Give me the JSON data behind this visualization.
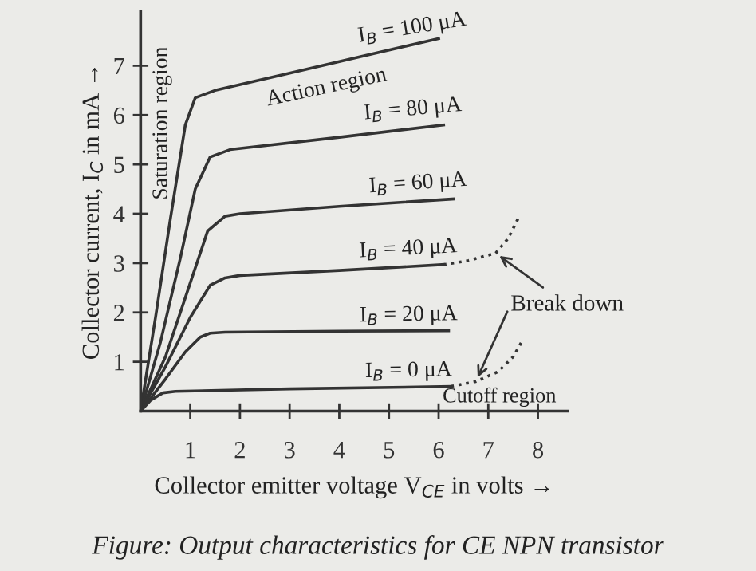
{
  "chart_data": {
    "type": "line",
    "xlabel": "Collector emitter voltage V$_{CE}$ in volts →",
    "ylabel": "Collector current, I$_{C}$ in mA →",
    "xlim": [
      0,
      8.6
    ],
    "ylim": [
      0,
      8.1
    ],
    "xticks": [
      1,
      2,
      3,
      4,
      5,
      6,
      7,
      8
    ],
    "yticks": [
      1,
      2,
      3,
      4,
      5,
      6,
      7
    ],
    "grid": false,
    "legend": false,
    "marker": "none",
    "series": [
      {
        "color": "#333333",
        "line_style": "solid",
        "x": [
          0,
          0.3,
          0.6,
          0.9,
          1.1,
          1.5,
          3,
          4.5,
          6.0
        ],
        "values": [
          0,
          1.9,
          3.9,
          5.8,
          6.35,
          6.5,
          6.85,
          7.2,
          7.55
        ]
      },
      {
        "color": "#333333",
        "line_style": "solid",
        "x": [
          0,
          0.4,
          0.8,
          1.1,
          1.4,
          1.8,
          4,
          6.1
        ],
        "values": [
          0,
          1.4,
          3.1,
          4.5,
          5.15,
          5.3,
          5.55,
          5.8
        ]
      },
      {
        "color": "#333333",
        "line_style": "solid",
        "x": [
          0,
          0.5,
          1.0,
          1.35,
          1.7,
          2.0,
          4,
          6.3
        ],
        "values": [
          0,
          1.1,
          2.6,
          3.65,
          3.95,
          4.0,
          4.15,
          4.3
        ]
      },
      {
        "color": "#333333",
        "line_style": "solid",
        "x": [
          0,
          0.5,
          1.0,
          1.4,
          1.7,
          2.0,
          4,
          6.1
        ],
        "values": [
          0,
          0.9,
          1.9,
          2.55,
          2.7,
          2.75,
          2.85,
          2.97
        ]
      },
      {
        "color": "#333333",
        "line_style": "solid",
        "x": [
          0,
          0.5,
          0.9,
          1.2,
          1.4,
          1.7,
          4,
          6.2
        ],
        "values": [
          0,
          0.65,
          1.2,
          1.5,
          1.58,
          1.6,
          1.62,
          1.63
        ]
      },
      {
        "color": "#333333",
        "line_style": "solid",
        "x": [
          0,
          0.2,
          0.45,
          0.7,
          3,
          6.25
        ],
        "values": [
          0,
          0.22,
          0.37,
          0.4,
          0.45,
          0.5
        ]
      },
      {
        "color": "#333333",
        "line_style": "dotted",
        "x": [
          6.1,
          6.6,
          7.15,
          7.4,
          7.6
        ],
        "values": [
          2.97,
          3.05,
          3.2,
          3.5,
          3.9
        ]
      },
      {
        "color": "#333333",
        "line_style": "dotted",
        "x": [
          6.25,
          6.75,
          7.2,
          7.5,
          7.7
        ],
        "values": [
          0.5,
          0.6,
          0.8,
          1.1,
          1.45
        ]
      }
    ],
    "annotations": [
      {
        "text": "I$_{B}$ = 100 μA",
        "x": 5.5,
        "y": 7.45
      },
      {
        "text": "Action region",
        "x": 3.7,
        "y": 6.9
      },
      {
        "text": "I$_{B}$ = 80 μA",
        "x": 5.5,
        "y": 5.8
      },
      {
        "text": "I$_{B}$ = 60 μA",
        "x": 5.6,
        "y": 4.3
      },
      {
        "text": "I$_{B}$ = 40 μA",
        "x": 5.4,
        "y": 2.97
      },
      {
        "text": "I$_{B}$ = 20 μA",
        "x": 5.4,
        "y": 1.63
      },
      {
        "text": "I$_{B}$ = 0 μA",
        "x": 5.4,
        "y": 0.5
      },
      "Saturation region",
      {
        "text": "Break down",
        "x": 7.15,
        "y": 3.2
      },
      "Cutoff region",
      "Figure: Output characteristics for CE NPN transistor"
    ]
  }
}
